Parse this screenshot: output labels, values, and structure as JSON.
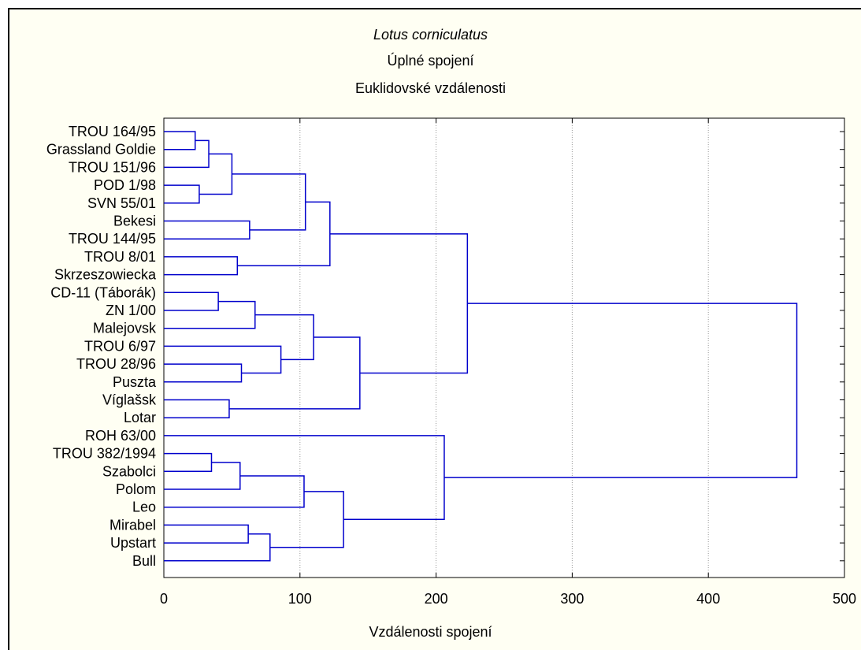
{
  "chart_data": {
    "type": "dendrogram",
    "title": "Lotus corniculatus",
    "subtitle": [
      "Úplné spojení",
      "Euklidovské vzdálenosti"
    ],
    "xlabel": "Vzdálenosti spojení",
    "xlim": [
      0,
      500
    ],
    "xticks": [
      0,
      100,
      200,
      300,
      400,
      500
    ],
    "grid": true,
    "line_color": "#0000cc",
    "leaves": [
      "TROU 164/95",
      "Grassland Goldie",
      "TROU 151/96",
      "POD 1/98",
      "SVN 55/01",
      "Bekesi",
      "TROU 144/95",
      "TROU 8/01",
      "Skrzeszowiecka",
      "CD-11 (Táborák)",
      "ZN 1/00",
      "Malejovsk",
      "TROU 6/97",
      "TROU 28/96",
      "Puszta",
      "Víglašsk",
      "Lotar",
      "ROH 63/00",
      "TROU 382/1994",
      "Szabolci",
      "Polom",
      "Leo",
      "Mirabel",
      "Upstart",
      "Bull"
    ],
    "merges": [
      {
        "a": 0,
        "b": 1,
        "height": 23
      },
      {
        "a": 25,
        "b": 2,
        "height": 33
      },
      {
        "a": 3,
        "b": 4,
        "height": 26
      },
      {
        "a": 26,
        "b": 27,
        "height": 50
      },
      {
        "a": 5,
        "b": 6,
        "height": 63
      },
      {
        "a": 28,
        "b": 29,
        "height": 104
      },
      {
        "a": 7,
        "b": 8,
        "height": 54
      },
      {
        "a": 30,
        "b": 31,
        "height": 122
      },
      {
        "a": 9,
        "b": 10,
        "height": 40
      },
      {
        "a": 33,
        "b": 11,
        "height": 67
      },
      {
        "a": 13,
        "b": 14,
        "height": 57
      },
      {
        "a": 12,
        "b": 35,
        "height": 86
      },
      {
        "a": 34,
        "b": 36,
        "height": 110
      },
      {
        "a": 15,
        "b": 16,
        "height": 48
      },
      {
        "a": 37,
        "b": 38,
        "height": 144
      },
      {
        "a": 32,
        "b": 39,
        "height": 223
      },
      {
        "a": 18,
        "b": 19,
        "height": 35
      },
      {
        "a": 41,
        "b": 20,
        "height": 56
      },
      {
        "a": 42,
        "b": 21,
        "height": 103
      },
      {
        "a": 22,
        "b": 23,
        "height": 62
      },
      {
        "a": 44,
        "b": 24,
        "height": 78
      },
      {
        "a": 43,
        "b": 45,
        "height": 132
      },
      {
        "a": 17,
        "b": 46,
        "height": 206
      },
      {
        "a": 40,
        "b": 47,
        "height": 465
      }
    ]
  }
}
